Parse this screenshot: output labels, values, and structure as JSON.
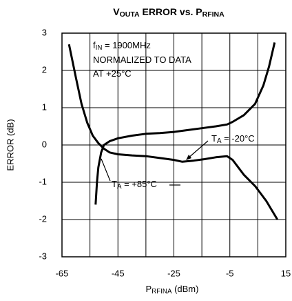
{
  "chart_data": {
    "type": "line",
    "title": [
      "V",
      "OUTA",
      " ERROR vs. P",
      "RFINA"
    ],
    "xlabel": [
      "P",
      "RFINA",
      " (dBm)"
    ],
    "ylabel": "ERROR (dB)",
    "xlim": [
      -65,
      15
    ],
    "xticks": [
      -65,
      -45,
      -25,
      -5,
      15
    ],
    "xgrid": [
      -55,
      -45,
      -35,
      -25,
      -15,
      -5,
      5
    ],
    "ylim": [
      -3,
      3
    ],
    "yticks": [
      -3,
      -2,
      -1,
      0,
      1,
      2,
      3
    ],
    "grid": true,
    "annotations": [
      [
        "f",
        "IN",
        " = 1900MHz"
      ],
      [
        "NORMALIZED TO DATA"
      ],
      [
        "AT +25°C"
      ],
      [
        "T",
        "A",
        " = -20°C"
      ],
      [
        "T",
        "A",
        " = +85°C"
      ]
    ],
    "series": [
      {
        "color": "#000000",
        "x": [
          -62.5,
          -60,
          -58,
          -56,
          -54,
          -52,
          -50,
          -48,
          -45,
          -40,
          -35,
          -30,
          -25,
          -22,
          -18,
          -14,
          -10,
          -6,
          -4,
          0,
          4,
          8,
          10,
          12
        ],
        "values": [
          2.7,
          1.8,
          1.1,
          0.6,
          0.25,
          0.05,
          -0.1,
          -0.2,
          -0.25,
          -0.28,
          -0.3,
          -0.35,
          -0.4,
          -0.45,
          -0.42,
          -0.38,
          -0.33,
          -0.3,
          -0.4,
          -0.8,
          -1.1,
          -1.5,
          -1.75,
          -2.0
        ]
      },
      {
        "color": "#000000",
        "x": [
          -53,
          -52.5,
          -52,
          -51,
          -50,
          -48,
          -45,
          -40,
          -35,
          -30,
          -25,
          -20,
          -15,
          -10,
          -6,
          -4,
          0,
          4,
          7,
          9,
          11
        ],
        "values": [
          -1.6,
          -1.0,
          -0.6,
          -0.2,
          0,
          0.1,
          0.18,
          0.25,
          0.3,
          0.32,
          0.35,
          0.4,
          0.45,
          0.5,
          0.55,
          0.62,
          0.8,
          1.1,
          1.6,
          2.1,
          2.75
        ]
      }
    ]
  }
}
